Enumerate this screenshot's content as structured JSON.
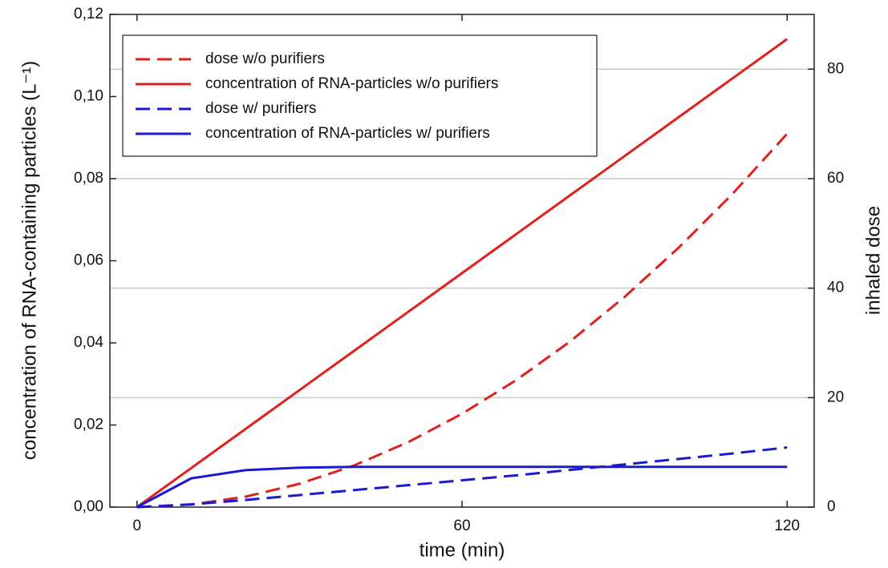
{
  "chart_data": {
    "type": "line",
    "xlabel": "time (min)",
    "ylabel": "concentration of RNA-containing particles (L⁻¹)",
    "y2label": "inhaled dose",
    "x": [
      0,
      10,
      20,
      30,
      40,
      50,
      60,
      70,
      80,
      90,
      100,
      110,
      120
    ],
    "series": [
      {
        "name": "dose w/o purifiers",
        "color": "#e0201b",
        "style": "dashed",
        "axis": "y2",
        "values": [
          0,
          0.47,
          1.9,
          4.26,
          7.58,
          11.84,
          17.05,
          23.2,
          30.3,
          38.4,
          47.4,
          57.3,
          68.2
        ]
      },
      {
        "name": "concentration of RNA-particles w/o purifiers",
        "color": "#e0201b",
        "style": "solid",
        "values": [
          0,
          0.0095,
          0.019,
          0.0285,
          0.038,
          0.0475,
          0.057,
          0.0665,
          0.076,
          0.0855,
          0.095,
          0.1045,
          0.114
        ]
      },
      {
        "name": "dose w/ purifiers",
        "color": "#1a1ad0",
        "style": "dashed",
        "axis": "y2",
        "values": [
          0,
          0.5,
          1.3,
          2.2,
          3.1,
          4.0,
          4.9,
          5.8,
          6.8,
          7.8,
          8.8,
          9.8,
          10.9
        ]
      },
      {
        "name": "concentration of RNA-particles w/ purifiers",
        "color": "#1a1ad0",
        "style": "solid",
        "values": [
          0,
          0.007,
          0.009,
          0.0096,
          0.0098,
          0.0098,
          0.0098,
          0.0098,
          0.0098,
          0.0098,
          0.0098,
          0.0098,
          0.0098
        ]
      }
    ],
    "xlim": [
      -5,
      125
    ],
    "xticks": [
      0,
      60,
      120
    ],
    "ylim": [
      0,
      0.12
    ],
    "yticks": [
      {
        "value": 0,
        "label": "0,00"
      },
      {
        "value": 0.02,
        "label": "0,02"
      },
      {
        "value": 0.04,
        "label": "0,04"
      },
      {
        "value": 0.06,
        "label": "0,06"
      },
      {
        "value": 0.08,
        "label": "0,08"
      },
      {
        "value": 0.1,
        "label": "0,10"
      },
      {
        "value": 0.12,
        "label": "0,12"
      }
    ],
    "y2lim": [
      0,
      90
    ],
    "y2ticks": [
      0,
      20,
      40,
      60,
      80
    ],
    "grid": "y2",
    "legend": "top-left"
  }
}
